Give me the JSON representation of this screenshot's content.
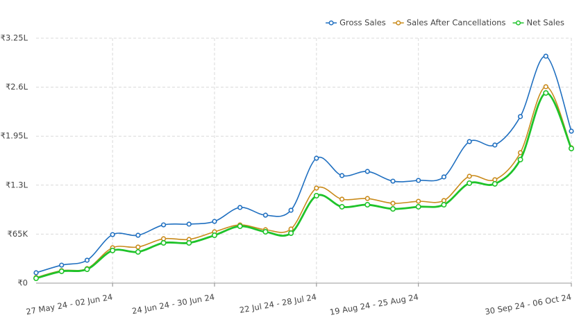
{
  "chart_data": {
    "type": "line",
    "categories": [
      null,
      null,
      null,
      "27 May 24 - 02 Jun 24",
      null,
      null,
      null,
      "24 Jun 24 - 30 Jun 24",
      null,
      null,
      null,
      "22 Jul 24 - 28 Jul 24",
      null,
      null,
      null,
      "19 Aug 24 - 25 Aug 24",
      null,
      null,
      null,
      null,
      null,
      "30 Sep 24 - 06 Oct 24"
    ],
    "series": [
      {
        "name": "Gross Sales",
        "color": "#1f6fc0",
        "values": [
          13800,
          23900,
          30400,
          64400,
          63500,
          77300,
          78300,
          81900,
          100400,
          90200,
          96700,
          165700,
          142700,
          148200,
          135300,
          136300,
          140900,
          187800,
          183200,
          221000,
          301100,
          201600
        ]
      },
      {
        "name": "Sales After Cancellations",
        "color": "#c98a1a",
        "values": [
          7400,
          16600,
          19300,
          47000,
          47900,
          58900,
          58000,
          68100,
          77300,
          70900,
          71800,
          126100,
          111400,
          112300,
          105900,
          108600,
          109600,
          141800,
          137200,
          173100,
          260600,
          179500
        ]
      },
      {
        "name": "Net Sales",
        "color": "#1fc32a",
        "values": [
          6400,
          15700,
          18400,
          43300,
          41400,
          53400,
          53400,
          63500,
          75500,
          68100,
          66300,
          116000,
          101300,
          104000,
          98500,
          101300,
          104000,
          132600,
          131700,
          163900,
          252300,
          178600
        ]
      }
    ],
    "ylim": [
      0,
      325000
    ],
    "yticks": [
      {
        "value": 0,
        "label": "₹0"
      },
      {
        "value": 65000,
        "label": "₹65K"
      },
      {
        "value": 130000,
        "label": "₹1.3L"
      },
      {
        "value": 195000,
        "label": "₹1.95L"
      },
      {
        "value": 260000,
        "label": "₹2.6L"
      },
      {
        "value": 325000,
        "label": "₹3.25L"
      }
    ],
    "grid": true,
    "legend": "top-right"
  }
}
